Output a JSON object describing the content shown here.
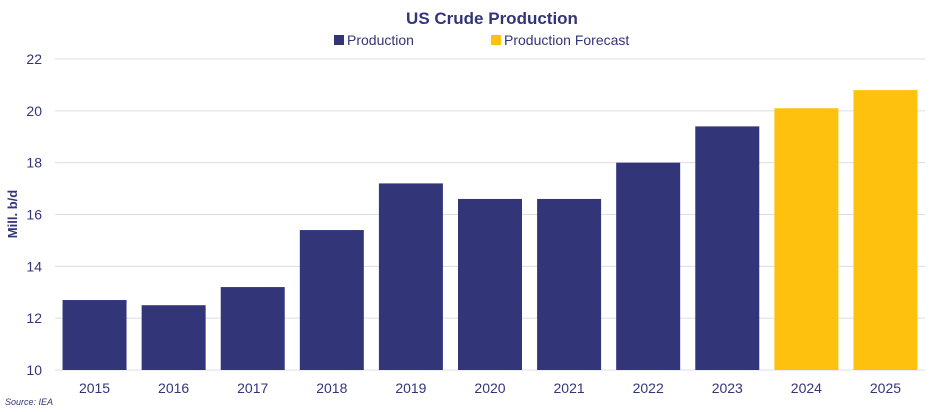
{
  "chart_data": {
    "type": "bar",
    "title": "US Crude Production",
    "ylabel": "Mill. b/d",
    "xlabel": "",
    "ylim": [
      10,
      22
    ],
    "yticks": [
      10,
      12,
      14,
      16,
      18,
      20,
      22
    ],
    "grid": true,
    "legend_position": "top",
    "categories": [
      "2015",
      "2016",
      "2017",
      "2018",
      "2019",
      "2020",
      "2021",
      "2022",
      "2023",
      "2024",
      "2025"
    ],
    "values": [
      12.7,
      12.5,
      13.2,
      15.4,
      17.2,
      16.6,
      16.6,
      18.0,
      19.4,
      20.1,
      20.8
    ],
    "series_of_point": [
      "Production",
      "Production",
      "Production",
      "Production",
      "Production",
      "Production",
      "Production",
      "Production",
      "Production",
      "Production Forecast",
      "Production Forecast"
    ],
    "series": [
      {
        "name": "Production",
        "color": "#333579"
      },
      {
        "name": "Production Forecast",
        "color": "#fec20e"
      }
    ],
    "source": "Source: IEA"
  }
}
